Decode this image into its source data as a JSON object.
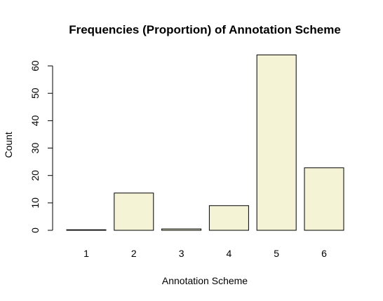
{
  "chart_data": {
    "type": "bar",
    "title": "Frequencies (Proportion) of Annotation Scheme",
    "xlabel": "Annotation Scheme",
    "ylabel": "Count",
    "categories": [
      "1",
      "2",
      "3",
      "4",
      "5",
      "6"
    ],
    "values": [
      0.2,
      13.6,
      0.5,
      9,
      64,
      22.8
    ],
    "yticks": [
      "0",
      "10",
      "20",
      "30",
      "40",
      "50",
      "60"
    ],
    "ylim": [
      0,
      66
    ],
    "grid": false,
    "legend": "none",
    "colors": {
      "bar_fill": "#f5f3d6",
      "bar_stroke": "#000000",
      "axis": "#000000",
      "background": "#ffffff"
    }
  }
}
